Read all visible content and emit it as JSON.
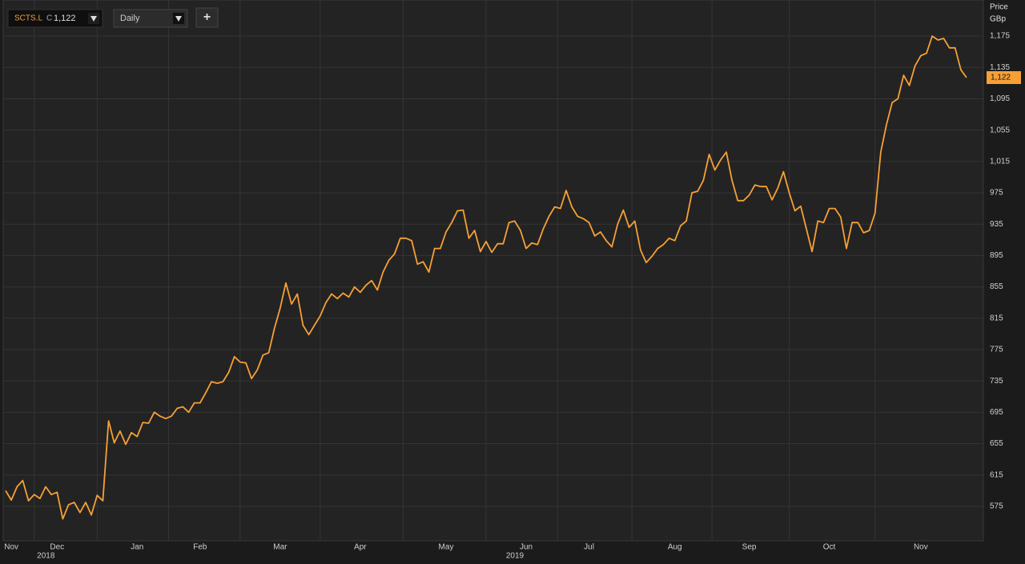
{
  "toolbar": {
    "symbol": "SCTS.L",
    "close_prefix": "C",
    "close": "1,122",
    "interval": "Daily",
    "add_button": "+"
  },
  "chart_data": {
    "type": "line",
    "y_axis_title": "Price",
    "y_axis_unit": "GBp",
    "color": "#f7a035",
    "grid": true,
    "last_label": "1,122",
    "categories": [
      null,
      "Nov",
      null,
      null,
      null,
      null,
      null,
      null,
      null,
      "Dec",
      null,
      null,
      null,
      null,
      null,
      null,
      null,
      null,
      null,
      null,
      null,
      null,
      null,
      "Jan",
      null,
      null,
      null,
      null,
      null,
      null,
      null,
      null,
      null,
      null,
      "Feb",
      null,
      null,
      null,
      null,
      null,
      null,
      null,
      null,
      null,
      null,
      null,
      null,
      null,
      "Mar",
      null,
      null,
      null,
      null,
      null,
      null,
      null,
      null,
      null,
      null,
      null,
      null,
      null,
      "Apr",
      null,
      null,
      null,
      null,
      null,
      null,
      null,
      null,
      null,
      null,
      null,
      null,
      null,
      null,
      "May",
      null,
      null,
      null,
      null,
      null,
      null,
      null,
      null,
      null,
      null,
      null,
      null,
      null,
      "Jun",
      null,
      null,
      null,
      null,
      null,
      null,
      null,
      null,
      null,
      null,
      "Jul",
      null,
      null,
      null,
      null,
      null,
      null,
      null,
      null,
      null,
      null,
      null,
      null,
      null,
      null,
      "Aug",
      null,
      null,
      null,
      null,
      null,
      null,
      null,
      null,
      null,
      null,
      null,
      null,
      "Sep",
      null,
      null,
      null,
      null,
      null,
      null,
      null,
      null,
      null,
      null,
      null,
      null,
      null,
      "Oct",
      null,
      null,
      null,
      null,
      null,
      null,
      null,
      null,
      null,
      null,
      null,
      null,
      null,
      null,
      null,
      "Nov",
      null,
      null,
      null,
      null,
      null,
      null,
      null,
      null
    ],
    "category_years": [
      null,
      null,
      null,
      null,
      null,
      null,
      null,
      null,
      null,
      "2018",
      null,
      null,
      null,
      null,
      null,
      null,
      null,
      null,
      null,
      null,
      null,
      null,
      null,
      null,
      null,
      null,
      null,
      null,
      null,
      null,
      null,
      null,
      null,
      null,
      null,
      null,
      null,
      null,
      null,
      null,
      null,
      null,
      null,
      null,
      null,
      null,
      null,
      null,
      null,
      null,
      null,
      null,
      null,
      null,
      null,
      null,
      null,
      null,
      null,
      null,
      null,
      null,
      null,
      null,
      null,
      null,
      null,
      null,
      null,
      null,
      null,
      null,
      null,
      null,
      null,
      null,
      null,
      null,
      null,
      null,
      null,
      null,
      null,
      null,
      null,
      null,
      null,
      null,
      null,
      null,
      null,
      "2019",
      null,
      null,
      null,
      null,
      null,
      null,
      null,
      null,
      null,
      null,
      null,
      null,
      null,
      null,
      null,
      null,
      null,
      null,
      null,
      null,
      null,
      null,
      null,
      null,
      null,
      null,
      null,
      null,
      null,
      null,
      null,
      null,
      null,
      null,
      null,
      null,
      null,
      null,
      null,
      null,
      null,
      null,
      null,
      null,
      null,
      null,
      null,
      null,
      null,
      null,
      null,
      null,
      null,
      null,
      null,
      null,
      null,
      null,
      null,
      null,
      null,
      null,
      null,
      null,
      null,
      null,
      null,
      null,
      null,
      null,
      null,
      null,
      null,
      null,
      null,
      null,
      null
    ],
    "values": [
      595,
      583,
      600,
      608,
      582,
      590,
      585,
      600,
      590,
      593,
      559,
      577,
      580,
      567,
      580,
      564,
      589,
      582,
      684,
      656,
      671,
      654,
      669,
      664,
      682,
      681,
      695,
      690,
      687,
      690,
      700,
      702,
      695,
      707,
      707,
      720,
      734,
      732,
      734,
      746,
      766,
      759,
      758,
      738,
      749,
      768,
      771,
      802,
      828,
      860,
      833,
      846,
      806,
      794,
      806,
      818,
      835,
      846,
      840,
      847,
      842,
      855,
      848,
      857,
      863,
      851,
      874,
      889,
      897,
      917,
      917,
      914,
      884,
      887,
      874,
      904,
      904,
      925,
      937,
      952,
      953,
      917,
      927,
      900,
      913,
      899,
      910,
      910,
      937,
      939,
      927,
      904,
      911,
      909,
      929,
      945,
      957,
      955,
      978,
      957,
      945,
      942,
      937,
      920,
      925,
      914,
      906,
      935,
      953,
      931,
      939,
      902,
      886,
      894,
      904,
      909,
      917,
      914,
      933,
      939,
      975,
      977,
      991,
      1024,
      1004,
      1017,
      1027,
      991,
      965,
      965,
      972,
      985,
      983,
      983,
      966,
      981,
      1002,
      975,
      952,
      958,
      929,
      900,
      939,
      937,
      955,
      955,
      944,
      904,
      937,
      937,
      924,
      927,
      949,
      1027,
      1062,
      1090,
      1095,
      1125,
      1112,
      1137,
      1150,
      1153,
      1175,
      1170,
      1172,
      1160,
      1160,
      1132,
      1122
    ],
    "ylim": [
      531,
      1221
    ],
    "yticks": [
      575,
      615,
      655,
      695,
      735,
      775,
      815,
      855,
      895,
      935,
      975,
      {
        "value": 1015,
        "label": "1,015"
      },
      {
        "value": 1055,
        "label": "1,055"
      },
      {
        "value": 1095,
        "label": "1,095"
      },
      {
        "value": 1135,
        "label": "1,135"
      },
      {
        "value": 1175,
        "label": "1,175"
      }
    ]
  }
}
